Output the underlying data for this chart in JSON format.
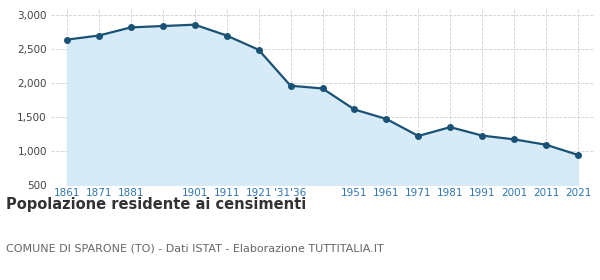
{
  "x_positions": [
    0,
    1,
    2,
    3,
    4,
    5,
    6,
    7,
    8,
    9,
    10,
    11,
    12,
    13,
    14,
    15,
    16
  ],
  "values": [
    2640,
    2700,
    2820,
    2840,
    2860,
    2700,
    2490,
    1960,
    1920,
    1610,
    1470,
    1220,
    1350,
    1225,
    1170,
    1090,
    940
  ],
  "tick_labels": [
    "1861",
    "1871",
    "1881",
    "",
    "1901",
    "1911",
    "1921",
    "'31'36",
    "",
    "1951",
    "1961",
    "1971",
    "1981",
    "1991",
    "2001",
    "2011",
    "2021"
  ],
  "line_color": "#1a5276",
  "fill_color": "#d6eaf8",
  "marker_color": "#1a5276",
  "bg_color": "#ffffff",
  "grid_color": "#d0d0d0",
  "ylim": [
    500,
    3100
  ],
  "yticks": [
    500,
    1000,
    1500,
    2000,
    2500,
    3000
  ],
  "title": "Popolazione residente ai censimenti",
  "subtitle": "COMUNE DI SPARONE (TO) - Dati ISTAT - Elaborazione TUTTITALIA.IT",
  "title_fontsize": 10.5,
  "subtitle_fontsize": 8
}
